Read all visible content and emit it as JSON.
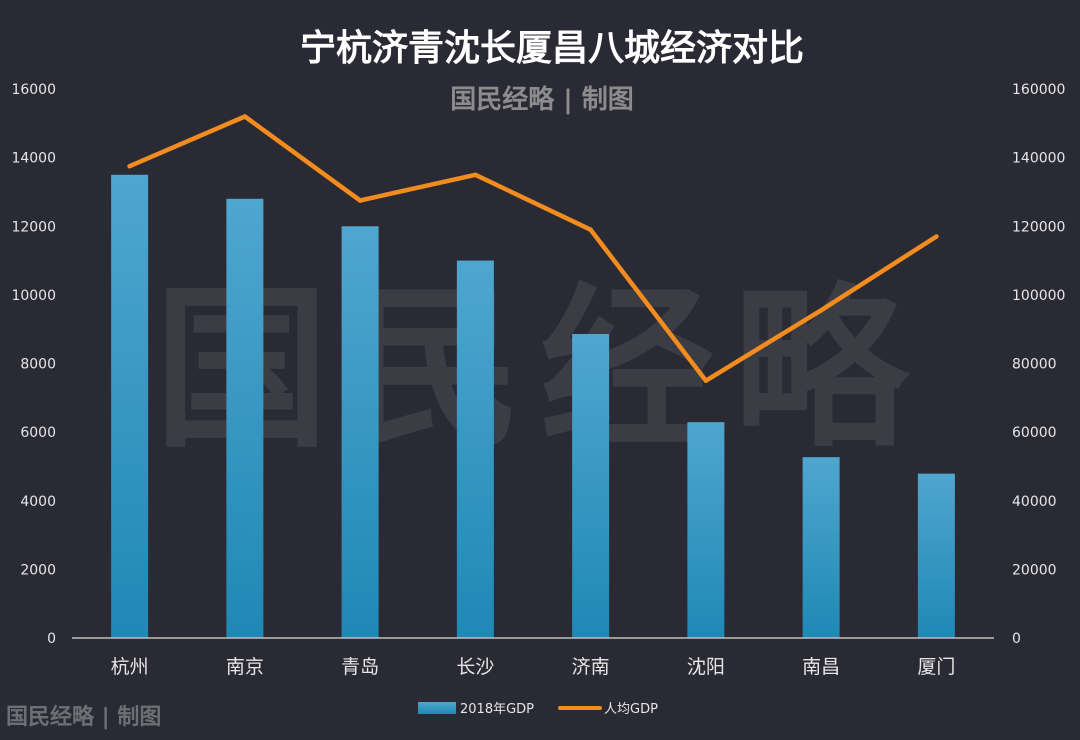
{
  "header": {
    "title": "宁杭济青沈长厦昌八城经济对比",
    "subtitle": "国民经略 | 制图"
  },
  "watermark": {
    "center_text": "国民经略",
    "corner_text": "国民经略 | 制图"
  },
  "legend": {
    "bar_label": "2018年GDP",
    "line_label": "人均GDP",
    "placement": "bottom-center"
  },
  "colors": {
    "background": "#2a2a35",
    "bar_top": "#4fa6cf",
    "bar_bottom": "#1f88b5",
    "line": "#f28c1e",
    "axis_text": "#e6e6e6",
    "title": "#ffffff",
    "subtitle": "#8c8c8c",
    "watermark": "#4a4a50"
  },
  "chart_data": {
    "type": "bar",
    "categories": [
      "杭州",
      "南京",
      "青岛",
      "长沙",
      "济南",
      "沈阳",
      "南昌",
      "厦门"
    ],
    "series": [
      {
        "name": "2018年GDP",
        "type": "bar",
        "axis": "left",
        "values": [
          13500,
          12800,
          12000,
          11000,
          8860,
          6290,
          5270,
          4790
        ]
      },
      {
        "name": "人均GDP",
        "type": "line",
        "axis": "right",
        "values": [
          137500,
          152000,
          127500,
          135000,
          119000,
          75000,
          95500,
          117000
        ]
      }
    ],
    "y_left": {
      "range": [
        0,
        16000
      ],
      "ticks": [
        0,
        2000,
        4000,
        6000,
        8000,
        10000,
        12000,
        14000,
        16000
      ]
    },
    "y_right": {
      "range": [
        0,
        160000
      ],
      "ticks": [
        0,
        20000,
        40000,
        60000,
        80000,
        100000,
        120000,
        140000,
        160000
      ]
    },
    "grid": false
  }
}
